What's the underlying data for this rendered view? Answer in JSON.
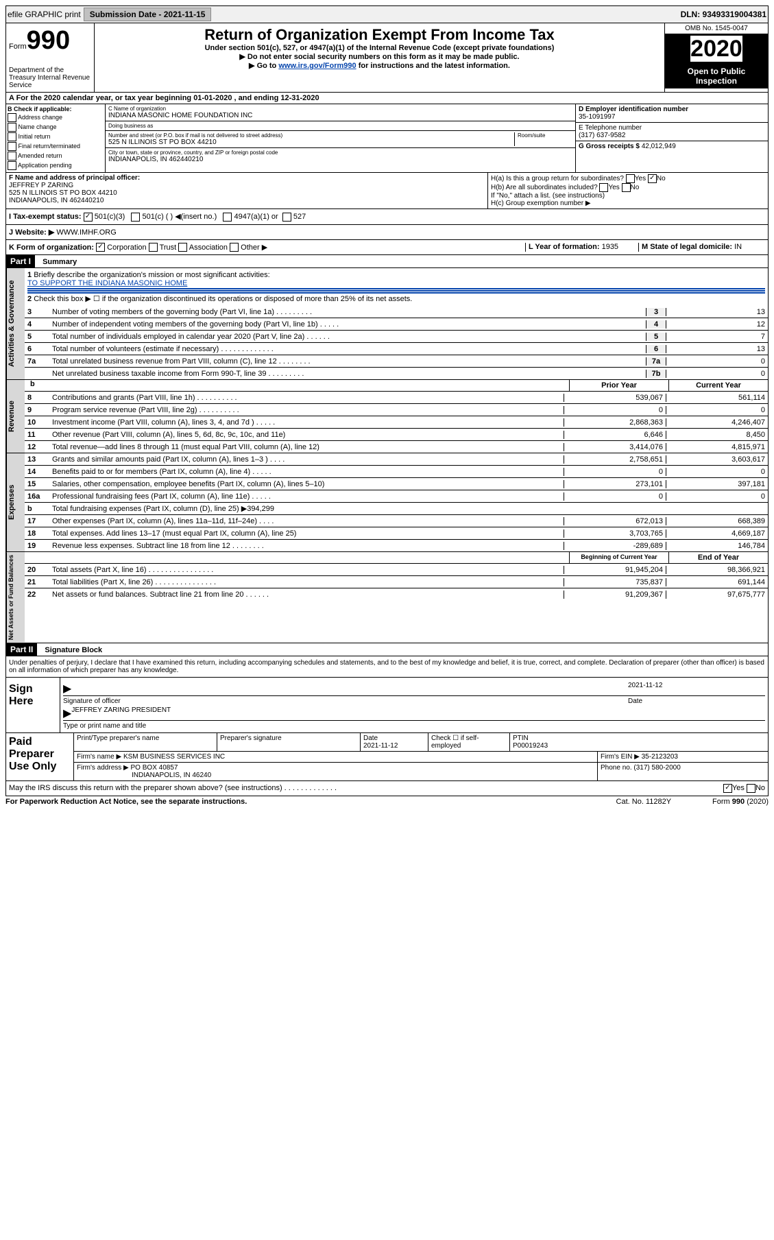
{
  "top": {
    "efile": "efile GRAPHIC print",
    "submission_label": "Submission Date - 2021-11-15",
    "dln": "DLN: 93493319004381"
  },
  "header": {
    "form_word": "Form",
    "form_num": "990",
    "title": "Return of Organization Exempt From Income Tax",
    "sub1": "Under section 501(c), 527, or 4947(a)(1) of the Internal Revenue Code (except private foundations)",
    "sub2": "▶ Do not enter social security numbers on this form as it may be made public.",
    "sub3_pre": "▶ Go to ",
    "sub3_link": "www.irs.gov/Form990",
    "sub3_post": " for instructions and the latest information.",
    "omb": "OMB No. 1545-0047",
    "year": "2020",
    "open": "Open to Public Inspection",
    "dept": "Department of the Treasury Internal Revenue Service"
  },
  "a": {
    "line": "A For the 2020 calendar year, or tax year beginning 01-01-2020    , and ending 12-31-2020"
  },
  "b": {
    "label": "B Check if applicable:",
    "opts": [
      "Address change",
      "Name change",
      "Initial return",
      "Final return/terminated",
      "Amended return",
      "Application pending"
    ]
  },
  "c": {
    "name_label": "C Name of organization",
    "name": "INDIANA MASONIC HOME FOUNDATION INC",
    "dba_label": "Doing business as",
    "street_label": "Number and street (or P.O. box if mail is not delivered to street address)",
    "room_label": "Room/suite",
    "street": "525 N ILLINOIS ST PO BOX 44210",
    "city_label": "City or town, state or province, country, and ZIP or foreign postal code",
    "city": "INDIANAPOLIS, IN  462440210"
  },
  "d": {
    "label": "D Employer identification number",
    "ein": "35-1091997"
  },
  "e": {
    "label": "E Telephone number",
    "phone": "(317) 637-9582"
  },
  "g": {
    "label": "G Gross receipts $",
    "val": "42,012,949"
  },
  "f": {
    "label": "F Name and address of principal officer:",
    "name": "JEFFREY P ZARING",
    "addr1": "525 N ILLINOIS ST PO BOX 44210",
    "addr2": "INDIANAPOLIS, IN  462440210"
  },
  "h": {
    "a": "H(a)  Is this a group return for subordinates?",
    "b": "H(b)  Are all subordinates included?",
    "note": "If \"No,\" attach a list. (see instructions)",
    "c": "H(c)  Group exemption number ▶"
  },
  "i": {
    "label": "I   Tax-exempt status:",
    "o1": "501(c)(3)",
    "o2": "501(c) (  ) ◀(insert no.)",
    "o3": "4947(a)(1) or",
    "o4": "527"
  },
  "j": {
    "label": "J   Website: ▶",
    "val": "WWW.IMHF.ORG"
  },
  "k": {
    "label": "K Form of organization:",
    "o1": "Corporation",
    "o2": "Trust",
    "o3": "Association",
    "o4": "Other ▶"
  },
  "l": {
    "label": "L Year of formation:",
    "val": "1935"
  },
  "m": {
    "label": "M State of legal domicile:",
    "val": "IN"
  },
  "part1": {
    "hdr": "Part I",
    "title": "Summary",
    "q1": "Briefly describe the organization's mission or most significant activities:",
    "mission": "TO SUPPORT THE INDIANA MASONIC HOME",
    "q2": "Check this box ▶ ☐  if the organization discontinued its operations or disposed of more than 25% of its net assets."
  },
  "gov": {
    "label": "Activities & Governance",
    "rows": [
      {
        "n": "3",
        "d": "Number of voting members of the governing body (Part VI, line 1a)  .  .  .  .  .  .  .  .  .",
        "b": "3",
        "v": "13"
      },
      {
        "n": "4",
        "d": "Number of independent voting members of the governing body (Part VI, line 1b)  .  .  .  .  .",
        "b": "4",
        "v": "12"
      },
      {
        "n": "5",
        "d": "Total number of individuals employed in calendar year 2020 (Part V, line 2a)  .  .  .  .  .  .",
        "b": "5",
        "v": "7"
      },
      {
        "n": "6",
        "d": "Total number of volunteers (estimate if necessary)  .  .  .  .  .  .  .  .  .  .  .  .  .",
        "b": "6",
        "v": "13"
      },
      {
        "n": "7a",
        "d": "Total unrelated business revenue from Part VIII, column (C), line 12  .  .  .  .  .  .  .  .",
        "b": "7a",
        "v": "0"
      },
      {
        "n": "",
        "d": "Net unrelated business taxable income from Form 990-T, line 39  .  .  .  .  .  .  .  .  .",
        "b": "7b",
        "v": "0"
      }
    ]
  },
  "rev": {
    "label": "Revenue",
    "hdr_prior": "Prior Year",
    "hdr_curr": "Current Year",
    "rows": [
      {
        "n": "8",
        "d": "Contributions and grants (Part VIII, line 1h)  .  .  .  .  .  .  .  .  .  .",
        "p": "539,067",
        "c": "561,114"
      },
      {
        "n": "9",
        "d": "Program service revenue (Part VIII, line 2g)  .  .  .  .  .  .  .  .  .  .",
        "p": "0",
        "c": "0"
      },
      {
        "n": "10",
        "d": "Investment income (Part VIII, column (A), lines 3, 4, and 7d )  .  .  .  .  .",
        "p": "2,868,363",
        "c": "4,246,407"
      },
      {
        "n": "11",
        "d": "Other revenue (Part VIII, column (A), lines 5, 6d, 8c, 9c, 10c, and 11e)",
        "p": "6,646",
        "c": "8,450"
      },
      {
        "n": "12",
        "d": "Total revenue—add lines 8 through 11 (must equal Part VIII, column (A), line 12)",
        "p": "3,414,076",
        "c": "4,815,971"
      }
    ]
  },
  "exp": {
    "label": "Expenses",
    "rows": [
      {
        "n": "13",
        "d": "Grants and similar amounts paid (Part IX, column (A), lines 1–3 )  .  .  .  .",
        "p": "2,758,651",
        "c": "3,603,617"
      },
      {
        "n": "14",
        "d": "Benefits paid to or for members (Part IX, column (A), line 4)  .  .  .  .  .",
        "p": "0",
        "c": "0"
      },
      {
        "n": "15",
        "d": "Salaries, other compensation, employee benefits (Part IX, column (A), lines 5–10)",
        "p": "273,101",
        "c": "397,181"
      },
      {
        "n": "16a",
        "d": "Professional fundraising fees (Part IX, column (A), line 11e)  .  .  .  .  .",
        "p": "0",
        "c": "0"
      },
      {
        "n": "b",
        "d": "Total fundraising expenses (Part IX, column (D), line 25) ▶394,299",
        "p": "",
        "c": "",
        "shaded": true
      },
      {
        "n": "17",
        "d": "Other expenses (Part IX, column (A), lines 11a–11d, 11f–24e)  .  .  .  .",
        "p": "672,013",
        "c": "668,389"
      },
      {
        "n": "18",
        "d": "Total expenses. Add lines 13–17 (must equal Part IX, column (A), line 25)",
        "p": "3,703,765",
        "c": "4,669,187"
      },
      {
        "n": "19",
        "d": "Revenue less expenses. Subtract line 18 from line 12  .  .  .  .  .  .  .  .",
        "p": "-289,689",
        "c": "146,784"
      }
    ]
  },
  "net": {
    "label": "Net Assets or Fund Balances",
    "hdr_beg": "Beginning of Current Year",
    "hdr_end": "End of Year",
    "rows": [
      {
        "n": "20",
        "d": "Total assets (Part X, line 16)  .  .  .  .  .  .  .  .  .  .  .  .  .  .  .  .",
        "p": "91,945,204",
        "c": "98,366,921"
      },
      {
        "n": "21",
        "d": "Total liabilities (Part X, line 26)  .  .  .  .  .  .  .  .  .  .  .  .  .  .  .",
        "p": "735,837",
        "c": "691,144"
      },
      {
        "n": "22",
        "d": "Net assets or fund balances. Subtract line 21 from line 20  .  .  .  .  .  .",
        "p": "91,209,367",
        "c": "97,675,777"
      }
    ]
  },
  "part2": {
    "hdr": "Part II",
    "title": "Signature Block",
    "penalties": "Under penalties of perjury, I declare that I have examined this return, including accompanying schedules and statements, and to the best of my knowledge and belief, it is true, correct, and complete. Declaration of preparer (other than officer) is based on all information of which preparer has any knowledge."
  },
  "sign": {
    "label": "Sign Here",
    "sig_officer": "Signature of officer",
    "date": "2021-11-12",
    "date_label": "Date",
    "name": "JEFFREY ZARING PRESIDENT",
    "name_label": "Type or print name and title"
  },
  "prep": {
    "label": "Paid Preparer Use Only",
    "h1": "Print/Type preparer's name",
    "h2": "Preparer's signature",
    "h3": "Date",
    "h3v": "2021-11-12",
    "h4": "Check ☐ if self-employed",
    "h5": "PTIN",
    "h5v": "P00019243",
    "firm_label": "Firm's name    ▶",
    "firm": "KSM BUSINESS SERVICES INC",
    "ein_label": "Firm's EIN ▶",
    "ein": "35-2123203",
    "addr_label": "Firm's address ▶",
    "addr1": "PO BOX 40857",
    "addr2": "INDIANAPOLIS, IN  46240",
    "phone_label": "Phone no.",
    "phone": "(317) 580-2000"
  },
  "discuss": {
    "q": "May the IRS discuss this return with the preparer shown above? (see instructions)  .  .  .  .  .  .  .  .  .  .  .  .  .",
    "yes": "Yes",
    "no": "No"
  },
  "footer": {
    "left": "For Paperwork Reduction Act Notice, see the separate instructions.",
    "mid": "Cat. No. 11282Y",
    "right": "Form 990 (2020)"
  }
}
